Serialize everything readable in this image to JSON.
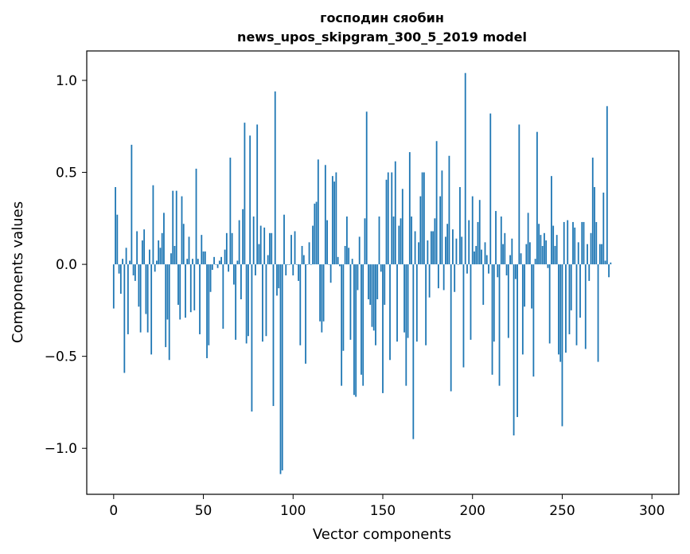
{
  "chart_data": {
    "type": "bar",
    "title": "господин сяобин",
    "subtitle": "news_upos_skipgram_300_5_2019 model",
    "xlabel": "Vector components",
    "ylabel": "Components values",
    "xlim": [
      -15,
      315
    ],
    "ylim": [
      -1.25,
      1.16
    ],
    "xticks": [
      0,
      50,
      100,
      150,
      200,
      250,
      300
    ],
    "xtick_labels": [
      "0",
      "50",
      "100",
      "150",
      "200",
      "250",
      "300"
    ],
    "yticks": [
      1.0,
      0.5,
      0.0,
      -0.5,
      -1.0
    ],
    "ytick_labels": [
      "1.0",
      "0.5",
      "0.0",
      "−0.5",
      "−1.0"
    ],
    "grid": false,
    "legend": "none",
    "bar_color": "#1f77b4",
    "values": [
      -0.24,
      0.42,
      0.27,
      -0.05,
      -0.16,
      0.03,
      -0.59,
      0.09,
      -0.38,
      0.02,
      0.65,
      -0.06,
      -0.09,
      0.18,
      -0.23,
      -0.37,
      0.13,
      0.19,
      -0.27,
      -0.37,
      0.08,
      -0.49,
      0.43,
      -0.04,
      0.02,
      0.13,
      0.09,
      0.17,
      0.28,
      -0.45,
      -0.3,
      -0.52,
      0.06,
      0.4,
      0.1,
      0.4,
      -0.22,
      -0.3,
      0.37,
      0.22,
      -0.29,
      0.03,
      0.15,
      -0.26,
      0.03,
      -0.25,
      0.52,
      0.03,
      -0.38,
      0.16,
      0.07,
      0.07,
      -0.51,
      -0.44,
      -0.15,
      -0.03,
      0.04,
      0.0,
      -0.02,
      0.02,
      0.04,
      -0.35,
      0.08,
      0.17,
      -0.04,
      0.58,
      0.17,
      -0.11,
      -0.41,
      0.02,
      0.24,
      -0.19,
      0.3,
      0.77,
      -0.43,
      -0.39,
      0.7,
      -0.8,
      0.26,
      -0.06,
      0.76,
      0.11,
      0.21,
      -0.42,
      0.2,
      -0.39,
      0.05,
      0.17,
      0.17,
      -0.77,
      0.94,
      -0.17,
      -0.13,
      -1.14,
      -1.12,
      0.27,
      -0.06,
      0.0,
      0.0,
      0.16,
      -0.06,
      0.18,
      0.0,
      -0.09,
      -0.44,
      0.1,
      0.05,
      -0.54,
      0.0,
      0.12,
      0.0,
      0.21,
      0.33,
      0.34,
      0.57,
      -0.31,
      -0.37,
      -0.31,
      0.54,
      0.24,
      0.0,
      -0.1,
      0.48,
      0.45,
      0.5,
      0.04,
      -0.01,
      -0.66,
      -0.47,
      0.1,
      0.26,
      0.09,
      -0.41,
      0.03,
      -0.71,
      -0.72,
      -0.14,
      0.15,
      -0.6,
      -0.66,
      0.25,
      0.83,
      -0.19,
      -0.22,
      -0.34,
      -0.36,
      -0.44,
      -0.19,
      0.26,
      -0.04,
      -0.7,
      -0.22,
      0.46,
      0.5,
      -0.52,
      0.5,
      0.26,
      0.56,
      -0.42,
      0.21,
      0.25,
      0.41,
      -0.37,
      -0.66,
      -0.4,
      0.61,
      0.26,
      -0.95,
      0.18,
      -0.42,
      0.12,
      0.37,
      0.5,
      0.5,
      -0.44,
      0.13,
      -0.18,
      0.18,
      0.18,
      0.25,
      0.67,
      -0.13,
      0.37,
      0.51,
      -0.14,
      0.15,
      0.22,
      0.59,
      -0.69,
      0.19,
      -0.15,
      0.14,
      0.0,
      0.42,
      0.15,
      -0.56,
      1.04,
      -0.05,
      0.24,
      -0.41,
      0.37,
      0.07,
      0.1,
      0.23,
      0.35,
      0.08,
      -0.22,
      0.12,
      0.05,
      -0.05,
      0.82,
      -0.6,
      -0.42,
      0.29,
      -0.07,
      -0.66,
      0.26,
      0.11,
      0.17,
      -0.06,
      -0.4,
      0.05,
      0.14,
      -0.93,
      -0.08,
      -0.83,
      0.76,
      0.06,
      -0.49,
      -0.23,
      0.11,
      0.28,
      0.12,
      -0.24,
      -0.61,
      0.03,
      0.72,
      0.22,
      0.16,
      0.1,
      0.17,
      0.13,
      -0.02,
      -0.43,
      0.48,
      0.21,
      0.1,
      0.16,
      -0.49,
      -0.53,
      -0.88,
      0.23,
      -0.48,
      0.24,
      -0.38,
      -0.25,
      0.23,
      0.2,
      -0.44,
      0.12,
      -0.29,
      0.23,
      0.23,
      -0.46,
      0.11,
      -0.09,
      0.17,
      0.58,
      0.42,
      0.23,
      -0.53,
      0.11,
      0.11,
      0.39,
      0.02,
      0.86,
      -0.07,
      0.01
    ],
    "value_precision_note_hidden": null
  }
}
